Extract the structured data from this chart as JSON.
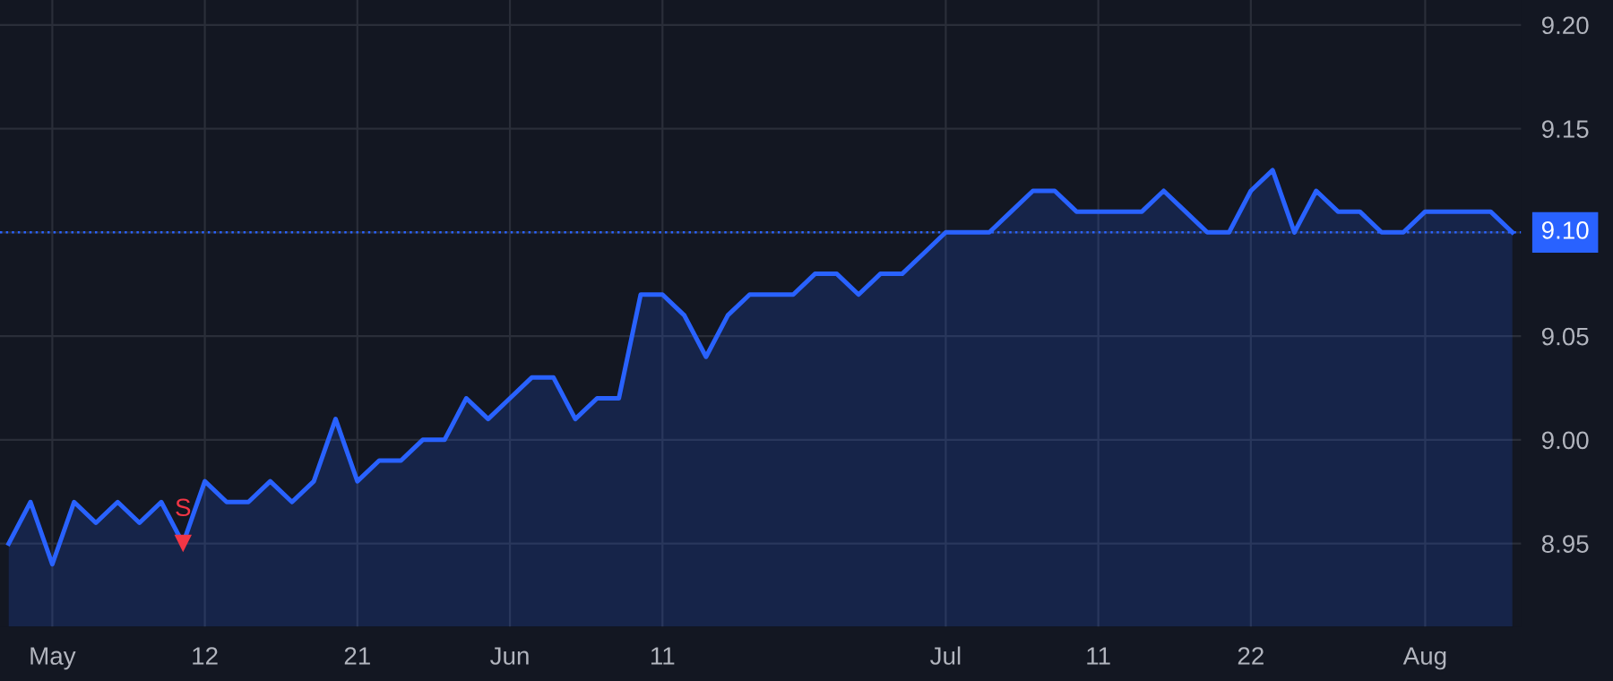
{
  "chart_data": {
    "type": "area",
    "categories": [
      null,
      null,
      "May",
      null,
      null,
      null,
      null,
      null,
      null,
      "12",
      null,
      null,
      null,
      null,
      null,
      null,
      "21",
      null,
      null,
      null,
      null,
      null,
      null,
      "Jun",
      null,
      null,
      null,
      null,
      null,
      null,
      "11",
      null,
      null,
      null,
      null,
      null,
      null,
      null,
      null,
      null,
      null,
      null,
      null,
      "Jul",
      null,
      null,
      null,
      null,
      null,
      null,
      "11",
      null,
      null,
      null,
      null,
      null,
      null,
      "22",
      null,
      null,
      null,
      null,
      null,
      null,
      null,
      "Aug",
      null,
      null,
      null,
      null
    ],
    "series": [
      {
        "color": "#2962ff",
        "values": [
          8.95,
          8.97,
          8.94,
          8.97,
          8.96,
          8.97,
          8.96,
          8.97,
          8.95,
          8.98,
          8.97,
          8.97,
          8.98,
          8.97,
          8.98,
          9.01,
          8.98,
          8.99,
          8.99,
          9.0,
          9.0,
          9.02,
          9.01,
          9.02,
          9.03,
          9.03,
          9.01,
          9.02,
          9.02,
          9.07,
          9.07,
          9.06,
          9.04,
          9.06,
          9.07,
          9.07,
          9.07,
          9.08,
          9.08,
          9.07,
          9.08,
          9.08,
          9.09,
          9.1,
          9.1,
          9.1,
          9.11,
          9.12,
          9.12,
          9.11,
          9.11,
          9.11,
          9.11,
          9.12,
          9.11,
          9.1,
          9.1,
          9.12,
          9.13,
          9.1,
          9.12,
          9.11,
          9.11,
          9.1,
          9.1,
          9.11,
          9.11,
          9.11,
          9.11,
          9.1
        ]
      },
      {
        "type": "scatter",
        "name": "S",
        "color": "#f23645",
        "marker": "triangle",
        "values": [
          null,
          null,
          null,
          null,
          null,
          null,
          null,
          null,
          8.95,
          null,
          null,
          null,
          null,
          null,
          null,
          null,
          null,
          null,
          null,
          null,
          null,
          null,
          null,
          null,
          null,
          null,
          null,
          null,
          null,
          null,
          null,
          null,
          null,
          null,
          null,
          null,
          null,
          null,
          null,
          null,
          null,
          null,
          null,
          null,
          null,
          null,
          null,
          null,
          null,
          null,
          null,
          null,
          null,
          null,
          null,
          null,
          null,
          null,
          null,
          null,
          null,
          null,
          null,
          null,
          null,
          null,
          null,
          null,
          null,
          null
        ]
      }
    ],
    "ylim": [
      8.91,
      9.212
    ],
    "yticks": [
      {
        "value": 8.95,
        "label": "8.95"
      },
      {
        "value": 9.0,
        "label": "9.00"
      },
      {
        "value": 9.05,
        "label": "9.05"
      },
      {
        "value": 9.1,
        "label": null
      },
      {
        "value": 9.15,
        "label": "9.15"
      },
      {
        "value": 9.2,
        "label": "9.20"
      }
    ],
    "ref_lines": [
      {
        "axis": "y",
        "value": 9.1,
        "label": "9.10",
        "color": "#2962ff",
        "line_style": "dotted"
      }
    ],
    "grid": true
  }
}
